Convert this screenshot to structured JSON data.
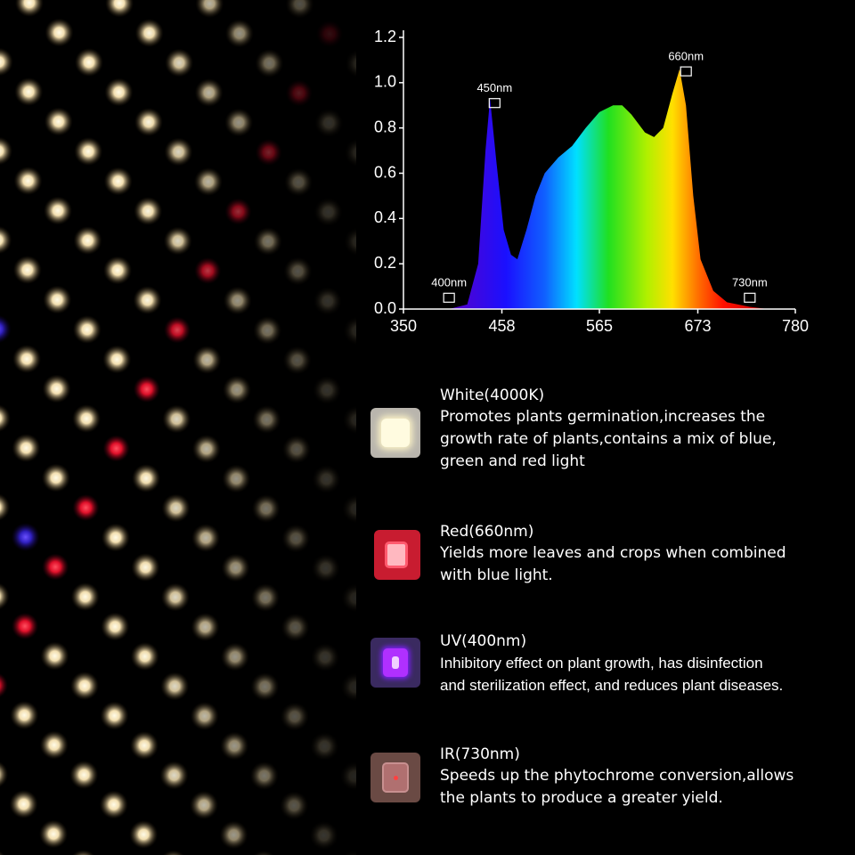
{
  "chart_data": {
    "type": "area",
    "x": [
      400,
      420,
      432,
      440,
      445,
      452,
      460,
      468,
      475,
      485,
      495,
      505,
      520,
      535,
      550,
      565,
      580,
      590,
      600,
      615,
      625,
      635,
      645,
      653,
      660,
      668,
      676,
      690,
      705,
      730,
      750
    ],
    "series": [
      {
        "values": [
          0,
          0.02,
          0.2,
          0.7,
          0.93,
          0.65,
          0.35,
          0.24,
          0.22,
          0.35,
          0.5,
          0.6,
          0.67,
          0.72,
          0.8,
          0.87,
          0.9,
          0.9,
          0.86,
          0.78,
          0.76,
          0.8,
          0.95,
          1.06,
          0.9,
          0.5,
          0.22,
          0.08,
          0.03,
          0.01,
          0
        ]
      }
    ],
    "xlim": [
      350,
      780
    ],
    "xticks": [
      350,
      458,
      565,
      673,
      780
    ],
    "ylim": [
      0,
      1.2
    ],
    "yticks": [
      {
        "value": 0,
        "label": "0.0"
      },
      0.2,
      0.4,
      0.6,
      0.8,
      {
        "value": 1,
        "label": "1.0"
      },
      1.2
    ],
    "annotations": [
      {
        "text": "450nm",
        "x": 450,
        "y": 0.91
      },
      {
        "text": "660nm",
        "x": 660,
        "y": 1.05
      },
      {
        "text": "400nm",
        "x": 400,
        "y": 0.05
      },
      {
        "text": "730nm",
        "x": 730,
        "y": 0.05
      }
    ]
  },
  "leds": [
    {
      "title": "White(4000K)",
      "lines": [
        "Promotes plants germination,increases the",
        "growth rate of plants,contains a mix of blue,",
        "green and red light"
      ]
    },
    {
      "title": "Red(660nm)",
      "lines": [
        "Yields more leaves and crops when combined",
        "with blue light."
      ]
    },
    {
      "title": "UV(400nm)",
      "lines": [
        "Inhibitory effect on plant growth, has disinfection",
        "and sterilization effect, and reduces plant diseases."
      ]
    },
    {
      "title": "IR(730nm)",
      "lines": [
        "Speeds up the phytochrome conversion,allows",
        "the plants to produce a greater yield."
      ]
    }
  ]
}
